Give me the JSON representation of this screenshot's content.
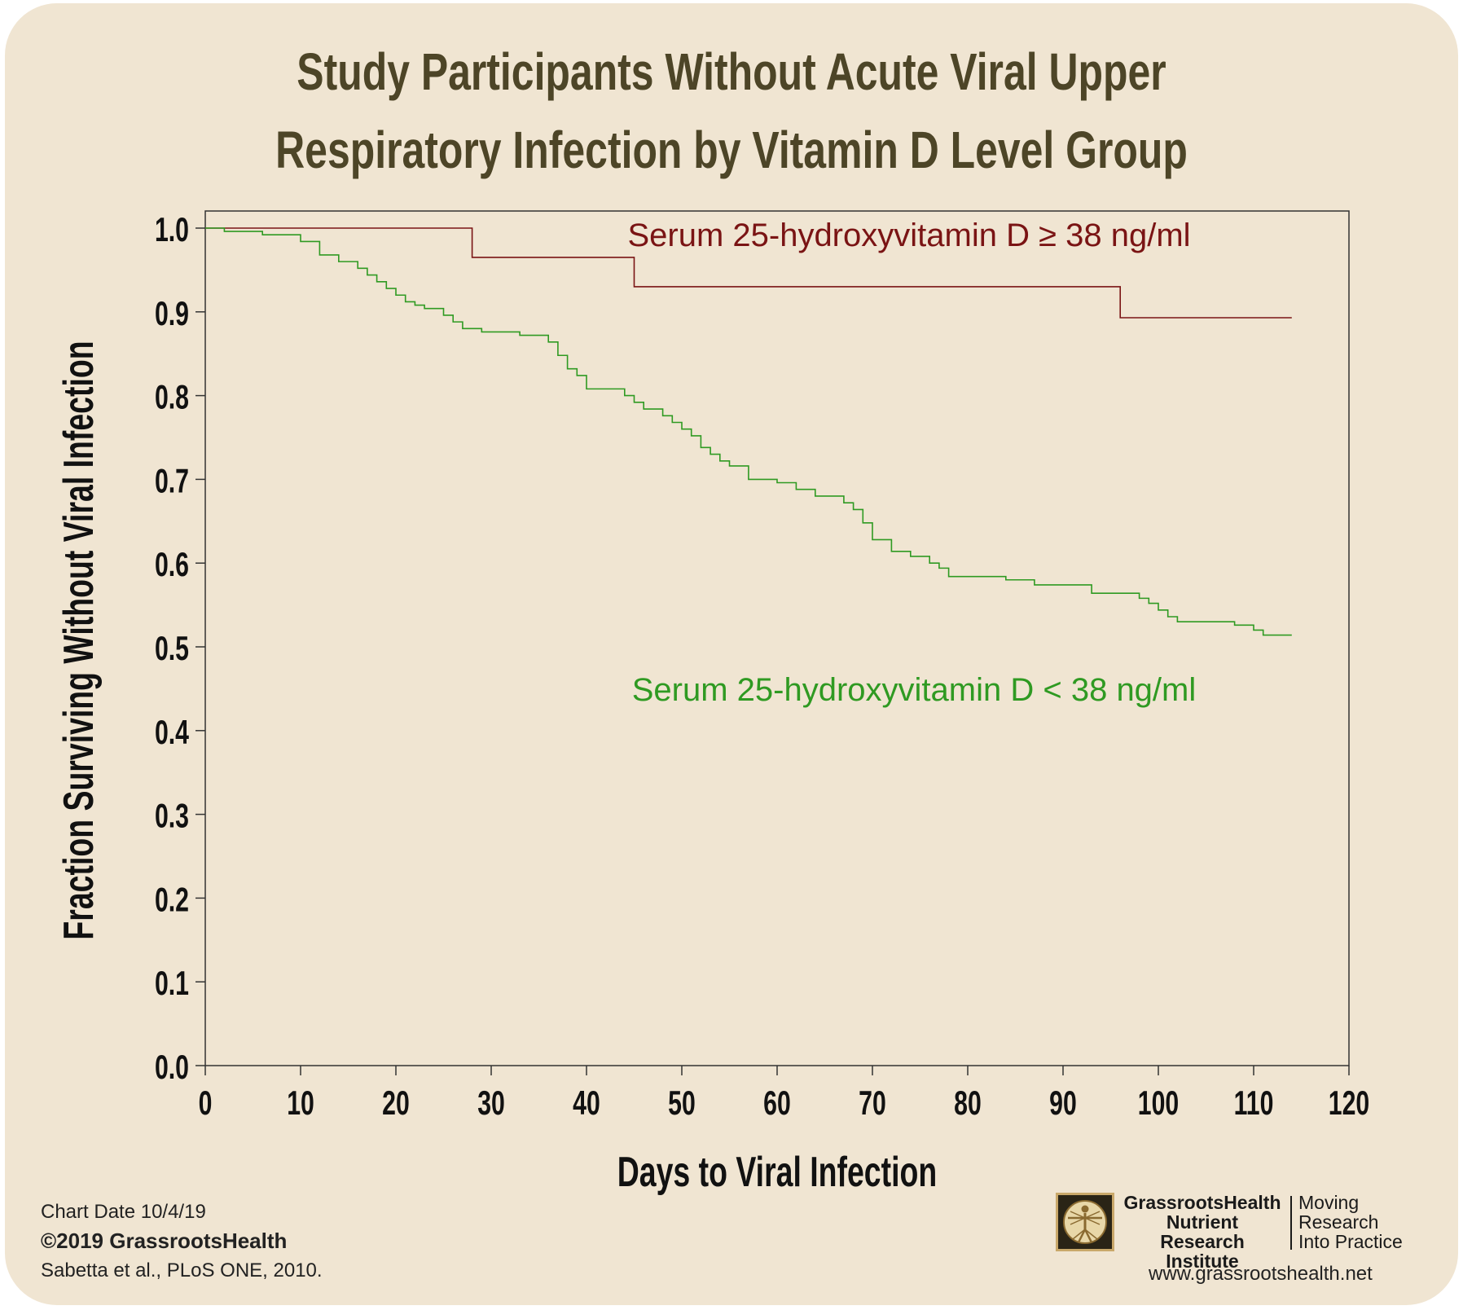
{
  "title": "Study Participants Without Acute Viral Upper Respiratory Infection by Vitamin D Level Group",
  "colors": {
    "background": "#f0e5d2",
    "title": "#4d4527",
    "series_high": "#7a1414",
    "series_low": "#2f9a22",
    "axis": "#333333"
  },
  "chart_data": {
    "type": "line",
    "step": true,
    "xlabel": "Days to Viral Infection",
    "ylabel": "Fraction Surviving Without Viral Infection",
    "xlim": [
      0,
      120
    ],
    "ylim": [
      0.0,
      1.0
    ],
    "x_ticks": [
      "0",
      "10",
      "20",
      "30",
      "40",
      "50",
      "60",
      "70",
      "80",
      "90",
      "100",
      "110",
      "120"
    ],
    "y_ticks": [
      "0.0",
      "0.1",
      "0.2",
      "0.3",
      "0.4",
      "0.5",
      "0.6",
      "0.7",
      "0.8",
      "0.9",
      "1.0"
    ],
    "grid": false,
    "series": [
      {
        "name": "Serum 25-hydroxyvitamin D ≥ 38 ng/ml",
        "color": "#7a1414",
        "x": [
          0,
          28,
          45,
          96,
          114
        ],
        "y": [
          1.0,
          0.965,
          0.93,
          0.893,
          0.893
        ]
      },
      {
        "name": "Serum 25-hydroxyvitamin D < 38 ng/ml",
        "color": "#2f9a22",
        "x": [
          0,
          2,
          6,
          10,
          12,
          14,
          16,
          17,
          18,
          19,
          20,
          21,
          22,
          23,
          25,
          26,
          27,
          28,
          29,
          33,
          36,
          37,
          38,
          39,
          40,
          44,
          45,
          46,
          48,
          49,
          50,
          51,
          52,
          53,
          54,
          55,
          57,
          60,
          62,
          64,
          67,
          68,
          69,
          70,
          72,
          74,
          76,
          77,
          78,
          80,
          84,
          87,
          90,
          93,
          96,
          98,
          99,
          100,
          101,
          102,
          103,
          108,
          110,
          111,
          114
        ],
        "y": [
          1.0,
          0.996,
          0.992,
          0.984,
          0.968,
          0.96,
          0.952,
          0.944,
          0.936,
          0.928,
          0.92,
          0.912,
          0.908,
          0.904,
          0.896,
          0.888,
          0.88,
          0.88,
          0.876,
          0.872,
          0.864,
          0.848,
          0.832,
          0.824,
          0.808,
          0.8,
          0.792,
          0.784,
          0.776,
          0.768,
          0.76,
          0.752,
          0.738,
          0.73,
          0.722,
          0.716,
          0.7,
          0.696,
          0.688,
          0.68,
          0.672,
          0.664,
          0.648,
          0.628,
          0.614,
          0.608,
          0.6,
          0.594,
          0.584,
          0.584,
          0.58,
          0.574,
          0.574,
          0.564,
          0.564,
          0.558,
          0.552,
          0.544,
          0.536,
          0.53,
          0.53,
          0.526,
          0.52,
          0.514,
          0.514
        ]
      }
    ]
  },
  "footer": {
    "chart_date": "Chart Date 10/4/19",
    "copyright": "©2019 GrassrootsHealth",
    "source": "Sabetta et al., PLoS ONE, 2010."
  },
  "logo": {
    "icon": "vitruvian-man-icon",
    "name_lines": [
      "GrassrootsHealth",
      "Nutrient",
      "Research Institute"
    ],
    "tagline_lines": [
      "Moving",
      "Research",
      "Into Practice"
    ]
  },
  "website": "www.grassrootshealth.net"
}
